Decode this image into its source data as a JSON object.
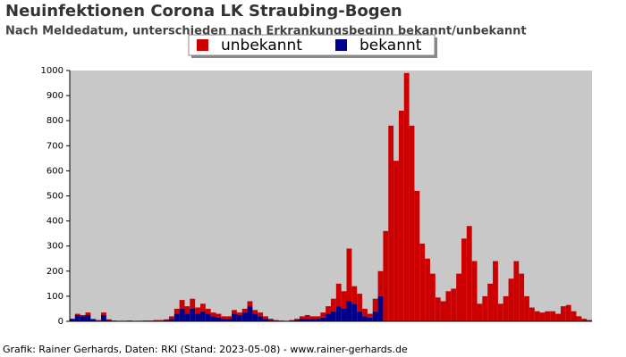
{
  "chart_data": {
    "type": "stacked_bar",
    "title": "Neuinfektionen Corona LK Straubing-Bogen",
    "subtitle": "Nach Meldedatum, unterschieden nach Erkrankungsbeginn bekannt/unbekannt",
    "footer": "Grafik: Rainer Gerhards, Daten: RKI (Stand: 2023-05-08) - www.rainer-gerhards.de",
    "categories": [
      null,
      null,
      null,
      null,
      null,
      null,
      null,
      null,
      null,
      null,
      null,
      null,
      null,
      null,
      null,
      null,
      null,
      null,
      null,
      null,
      null,
      null,
      null,
      null,
      null,
      null,
      null,
      null,
      null,
      null,
      null,
      null,
      null,
      null,
      null,
      null,
      null,
      null,
      null,
      null,
      null,
      null,
      null,
      null,
      null,
      null,
      null,
      null,
      null,
      null,
      null,
      null,
      null,
      null,
      null,
      null,
      null,
      null,
      null,
      null,
      null,
      null,
      null,
      null,
      null,
      null,
      null,
      null,
      null,
      null,
      null,
      null,
      null,
      null,
      null,
      null,
      null,
      null,
      null,
      null,
      null,
      null,
      null,
      null,
      null,
      null,
      null,
      null,
      null,
      null,
      null,
      null,
      null,
      null,
      null,
      null,
      null,
      null,
      null,
      null
    ],
    "series": [
      {
        "name": "unbekannt",
        "color": "#cc0000",
        "values": [
          0,
          5,
          5,
          10,
          2,
          2,
          10,
          3,
          1,
          1,
          1,
          1,
          1,
          1,
          1,
          1,
          2,
          2,
          3,
          10,
          20,
          35,
          30,
          40,
          25,
          30,
          20,
          15,
          15,
          10,
          10,
          15,
          10,
          15,
          20,
          15,
          15,
          10,
          5,
          2,
          1,
          1,
          2,
          5,
          10,
          15,
          10,
          10,
          20,
          30,
          50,
          90,
          70,
          210,
          70,
          70,
          30,
          15,
          50,
          100,
          360,
          780,
          640,
          840,
          990,
          780,
          520,
          310,
          250,
          190,
          95,
          80,
          120,
          130,
          190,
          330,
          380,
          240,
          70,
          100,
          150,
          240,
          70,
          100,
          170,
          240,
          190,
          100,
          55,
          40,
          35,
          40,
          40,
          30,
          60,
          65,
          40,
          20,
          10,
          5
        ]
      },
      {
        "name": "bekannt",
        "color": "#00008b",
        "values": [
          10,
          25,
          20,
          25,
          8,
          3,
          25,
          5,
          2,
          1,
          1,
          2,
          0,
          1,
          2,
          2,
          3,
          3,
          5,
          10,
          30,
          50,
          30,
          50,
          30,
          40,
          30,
          20,
          15,
          10,
          10,
          30,
          25,
          35,
          60,
          30,
          20,
          10,
          5,
          3,
          2,
          1,
          3,
          5,
          10,
          10,
          10,
          10,
          15,
          30,
          40,
          60,
          50,
          80,
          70,
          40,
          20,
          15,
          40,
          100,
          0,
          0,
          0,
          0,
          0,
          0,
          0,
          0,
          0,
          0,
          0,
          0,
          0,
          0,
          0,
          0,
          0,
          0,
          0,
          0,
          0,
          0,
          0,
          0,
          0,
          0,
          0,
          0,
          0,
          0,
          0,
          0,
          0,
          0,
          0,
          0,
          0,
          0,
          0,
          0
        ]
      }
    ],
    "ylim": [
      0,
      1000
    ],
    "yticks": [
      0,
      100,
      200,
      300,
      400,
      500,
      600,
      700,
      800,
      900,
      1000
    ],
    "background": "#c8c8c8"
  }
}
